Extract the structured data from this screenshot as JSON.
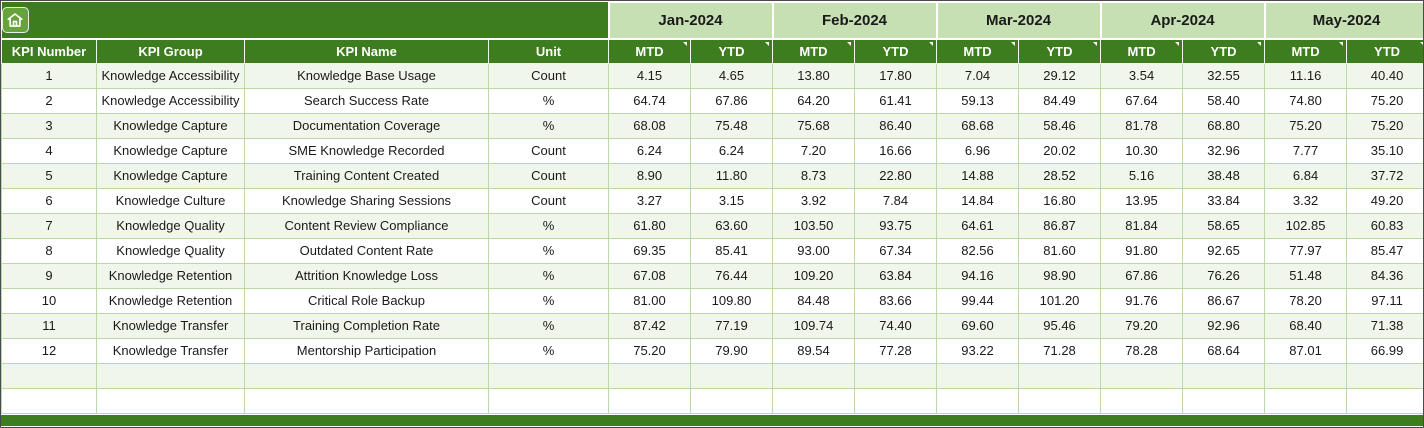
{
  "table": {
    "months": [
      "Jan-2024",
      "Feb-2024",
      "Mar-2024",
      "Apr-2024",
      "May-2024"
    ],
    "sub_headers": [
      "MTD",
      "YTD"
    ],
    "left_columns": [
      "KPI Number",
      "KPI Group",
      "KPI Name",
      "Unit"
    ],
    "rows": [
      {
        "kpi_number": "1",
        "kpi_group": "Knowledge Accessibility",
        "kpi_name": "Knowledge Base Usage",
        "unit": "Count",
        "values": [
          "4.15",
          "4.65",
          "13.80",
          "17.80",
          "7.04",
          "29.12",
          "3.54",
          "32.55",
          "11.16",
          "40.40"
        ]
      },
      {
        "kpi_number": "2",
        "kpi_group": "Knowledge Accessibility",
        "kpi_name": "Search Success Rate",
        "unit": "%",
        "values": [
          "64.74",
          "67.86",
          "64.20",
          "61.41",
          "59.13",
          "84.49",
          "67.64",
          "58.40",
          "74.80",
          "75.20"
        ]
      },
      {
        "kpi_number": "3",
        "kpi_group": "Knowledge Capture",
        "kpi_name": "Documentation Coverage",
        "unit": "%",
        "values": [
          "68.08",
          "75.48",
          "75.68",
          "86.40",
          "68.68",
          "58.46",
          "81.78",
          "68.80",
          "75.20",
          "75.20"
        ]
      },
      {
        "kpi_number": "4",
        "kpi_group": "Knowledge Capture",
        "kpi_name": "SME Knowledge Recorded",
        "unit": "Count",
        "values": [
          "6.24",
          "6.24",
          "7.20",
          "16.66",
          "6.96",
          "20.02",
          "10.30",
          "32.96",
          "7.77",
          "35.10"
        ]
      },
      {
        "kpi_number": "5",
        "kpi_group": "Knowledge Capture",
        "kpi_name": "Training Content Created",
        "unit": "Count",
        "values": [
          "8.90",
          "11.80",
          "8.73",
          "22.80",
          "14.88",
          "28.52",
          "5.16",
          "38.48",
          "6.84",
          "37.72"
        ]
      },
      {
        "kpi_number": "6",
        "kpi_group": "Knowledge Culture",
        "kpi_name": "Knowledge Sharing Sessions",
        "unit": "Count",
        "values": [
          "3.27",
          "3.15",
          "3.92",
          "7.84",
          "14.84",
          "16.80",
          "13.95",
          "33.84",
          "3.32",
          "49.20"
        ]
      },
      {
        "kpi_number": "7",
        "kpi_group": "Knowledge Quality",
        "kpi_name": "Content Review Compliance",
        "unit": "%",
        "values": [
          "61.80",
          "63.60",
          "103.50",
          "93.75",
          "64.61",
          "86.87",
          "81.84",
          "58.65",
          "102.85",
          "60.83"
        ]
      },
      {
        "kpi_number": "8",
        "kpi_group": "Knowledge Quality",
        "kpi_name": "Outdated Content Rate",
        "unit": "%",
        "values": [
          "69.35",
          "85.41",
          "93.00",
          "67.34",
          "82.56",
          "81.60",
          "91.80",
          "92.65",
          "77.97",
          "85.47"
        ]
      },
      {
        "kpi_number": "9",
        "kpi_group": "Knowledge Retention",
        "kpi_name": "Attrition Knowledge Loss",
        "unit": "%",
        "values": [
          "67.08",
          "76.44",
          "109.20",
          "63.84",
          "94.16",
          "98.90",
          "67.86",
          "76.26",
          "51.48",
          "84.36"
        ]
      },
      {
        "kpi_number": "10",
        "kpi_group": "Knowledge Retention",
        "kpi_name": "Critical Role Backup",
        "unit": "%",
        "values": [
          "81.00",
          "109.80",
          "84.48",
          "83.66",
          "99.44",
          "101.20",
          "91.76",
          "86.67",
          "78.20",
          "97.11"
        ]
      },
      {
        "kpi_number": "11",
        "kpi_group": "Knowledge Transfer",
        "kpi_name": "Training Completion Rate",
        "unit": "%",
        "values": [
          "87.42",
          "77.19",
          "109.74",
          "74.40",
          "69.60",
          "95.46",
          "79.20",
          "92.96",
          "68.40",
          "71.38"
        ]
      },
      {
        "kpi_number": "12",
        "kpi_group": "Knowledge Transfer",
        "kpi_name": "Mentorship Participation",
        "unit": "%",
        "values": [
          "75.20",
          "79.90",
          "89.54",
          "77.28",
          "93.22",
          "71.28",
          "78.28",
          "68.64",
          "87.01",
          "66.99"
        ]
      }
    ],
    "empty_rows": 2
  },
  "icons": {
    "home": "home-icon"
  },
  "colors": {
    "header_green": "#3E7D1F",
    "home_btn_green": "#67A33B",
    "month_green": "#C6E0B4",
    "row_alt_green": "#F0F7EA",
    "grid_green": "#BCD8A5"
  }
}
